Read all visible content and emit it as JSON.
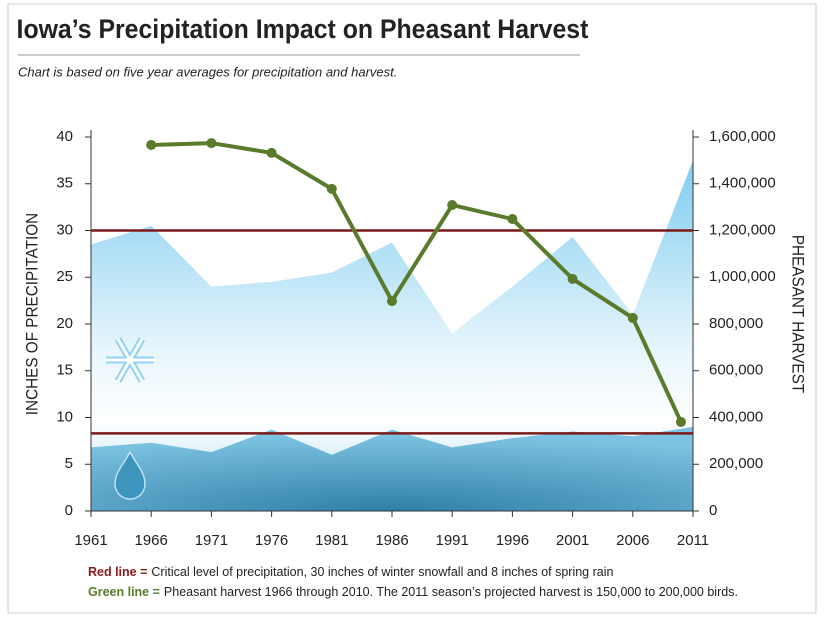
{
  "chart_data": {
    "type": "area",
    "title": "Iowa’s Precipitation Impact on Pheasant Harvest",
    "subtitle": "Chart is based on five year averages for precipitation and harvest.",
    "ylabel": "INCHES OF PRECIPITATION",
    "y2label": "PHEASANT HARVEST",
    "xlim": [
      1961,
      2011
    ],
    "xticks": [
      1961,
      1966,
      1971,
      1976,
      1981,
      1986,
      1991,
      1996,
      2001,
      2006,
      2011
    ],
    "ylim": [
      0,
      40
    ],
    "yticks": [
      0,
      5,
      10,
      15,
      20,
      25,
      30,
      35,
      40
    ],
    "y2lim": [
      0,
      1600000
    ],
    "y2ticks": [
      {
        "value": 0,
        "label": "0"
      },
      {
        "value": 200000,
        "label": "200,000"
      },
      {
        "value": 400000,
        "label": "400,000"
      },
      {
        "value": 600000,
        "label": "600,000"
      },
      {
        "value": 800000,
        "label": "800,000"
      },
      {
        "value": 1000000,
        "label": "1,000,000"
      },
      {
        "value": 1200000,
        "label": "1,200,000"
      },
      {
        "value": 1400000,
        "label": "1,400,000"
      },
      {
        "value": 1600000,
        "label": "1,600,000"
      }
    ],
    "series": [
      {
        "type": "area",
        "color": "#8fd3f2",
        "x": [
          1961,
          1966,
          1971,
          1976,
          1981,
          1986,
          1991,
          1996,
          2001,
          2006,
          2011
        ],
        "values": [
          28.5,
          30.5,
          24,
          24.5,
          25.5,
          28.7,
          19,
          24,
          29.3,
          21,
          37.5
        ]
      },
      {
        "type": "area",
        "color": "#4f9fc4",
        "x": [
          1961,
          1966,
          1971,
          1976,
          1981,
          1986,
          1991,
          1996,
          2001,
          2006,
          2011
        ],
        "values": [
          6.8,
          7.3,
          6.3,
          8.7,
          6,
          8.7,
          6.8,
          7.8,
          8.5,
          8,
          9
        ]
      },
      {
        "type": "line",
        "axis": "y2",
        "color": "#5a7a2c",
        "x": [
          1966,
          1971,
          1976,
          1981,
          1986,
          1991,
          1996,
          2001,
          2006,
          2010
        ],
        "values": [
          1566000,
          1574000,
          1532000,
          1378000,
          898000,
          1309000,
          1249000,
          993000,
          826000,
          381000
        ]
      }
    ],
    "hlines": [
      {
        "value": 30,
        "color": "#7b1a1a"
      },
      {
        "value": 8.3,
        "color": "#7b1a1a"
      }
    ],
    "notes": [
      {
        "label": "Red line =",
        "color": "#8b1a1a",
        "text": "Critical level of precipitation, 30 inches of winter snowfall and 8 inches of spring rain"
      },
      {
        "label": "Green line =",
        "color": "#5a7a2c",
        "text": "Pheasant harvest 1966 through 2010. The 2011 season’s projected harvest is 150,000 to 200,000 birds."
      }
    ]
  }
}
